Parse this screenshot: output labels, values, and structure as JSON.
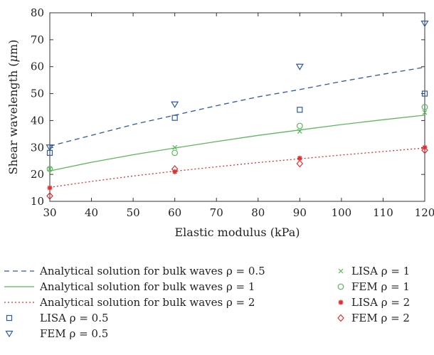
{
  "chart_data": {
    "type": "scatter",
    "xlabel": "Elastic modulus (kPa)",
    "ylabel_parts": [
      "Shear wavelength (",
      "μ",
      "m)"
    ],
    "xlim": [
      30,
      120
    ],
    "ylim": [
      10,
      80
    ],
    "x_ticks": [
      30,
      40,
      50,
      60,
      70,
      80,
      90,
      100,
      110,
      120
    ],
    "y_ticks": [
      10,
      20,
      30,
      40,
      50,
      60,
      70,
      80
    ],
    "grid": false,
    "legend_placement": "bottom",
    "lines": [
      {
        "name": "Analytical solution for bulk waves ρ = 0.5",
        "style": "dashed",
        "color": "#2e58a8",
        "x": [
          30,
          40,
          50,
          60,
          70,
          80,
          90,
          100,
          110,
          120
        ],
        "y": [
          30.5,
          34.5,
          38.5,
          42.0,
          45.5,
          48.8,
          51.5,
          54.5,
          57.2,
          59.8
        ]
      },
      {
        "name": "Analytical solution for bulk waves ρ = 1",
        "style": "solid",
        "color": "#5cb85c",
        "x": [
          30,
          40,
          50,
          60,
          70,
          80,
          90,
          100,
          110,
          120
        ],
        "y": [
          21.3,
          24.5,
          27.3,
          29.8,
          32.2,
          34.5,
          36.5,
          38.5,
          40.3,
          42.0
        ]
      },
      {
        "name": "Analytical solution for bulk waves ρ = 2",
        "style": "dotted",
        "color": "#e03030",
        "x": [
          30,
          40,
          50,
          60,
          70,
          80,
          90,
          100,
          110,
          120
        ],
        "y": [
          15.2,
          17.4,
          19.4,
          21.2,
          22.8,
          24.4,
          25.8,
          27.2,
          28.5,
          29.8
        ]
      }
    ],
    "series": [
      {
        "name": "LISA ρ = 0.5",
        "marker": "square",
        "color": "#2e58a8",
        "x": [
          30,
          60,
          90,
          120
        ],
        "y": [
          28,
          41,
          44,
          50
        ]
      },
      {
        "name": "FEM ρ = 0.5",
        "marker": "triangle-down",
        "color": "#2e58a8",
        "x": [
          30,
          60,
          90,
          120
        ],
        "y": [
          30,
          46,
          60,
          76
        ]
      },
      {
        "name": "LISA ρ = 1",
        "marker": "x",
        "color": "#5cb85c",
        "x": [
          30,
          60,
          90,
          120
        ],
        "y": [
          22,
          30,
          36,
          43
        ]
      },
      {
        "name": "FEM ρ = 1",
        "marker": "circle",
        "color": "#5cb85c",
        "x": [
          30,
          60,
          90,
          120
        ],
        "y": [
          22,
          28,
          38,
          45
        ]
      },
      {
        "name": "LISA ρ = 2",
        "marker": "star",
        "color": "#e03030",
        "x": [
          30,
          60,
          90,
          120
        ],
        "y": [
          15,
          21,
          26,
          30
        ]
      },
      {
        "name": "FEM ρ = 2",
        "marker": "diamond",
        "color": "#e03030",
        "x": [
          30,
          60,
          90,
          120
        ],
        "y": [
          12,
          22,
          24,
          29
        ]
      }
    ]
  },
  "legend": {
    "left": [
      {
        "key": "line0",
        "label": "Analytical solution for bulk waves ρ = 0.5"
      },
      {
        "key": "line1",
        "label": "Analytical solution for bulk waves ρ = 1"
      },
      {
        "key": "line2",
        "label": "Analytical solution for bulk waves ρ = 2"
      },
      {
        "key": "s0",
        "label": "LISA ρ = 0.5"
      },
      {
        "key": "s1",
        "label": "FEM ρ = 0.5"
      }
    ],
    "right": [
      {
        "key": "s2",
        "label": "LISA ρ = 1"
      },
      {
        "key": "s3",
        "label": "FEM ρ = 1"
      },
      {
        "key": "s4",
        "label": "LISA ρ = 2"
      },
      {
        "key": "s5",
        "label": "FEM ρ = 2"
      }
    ]
  }
}
